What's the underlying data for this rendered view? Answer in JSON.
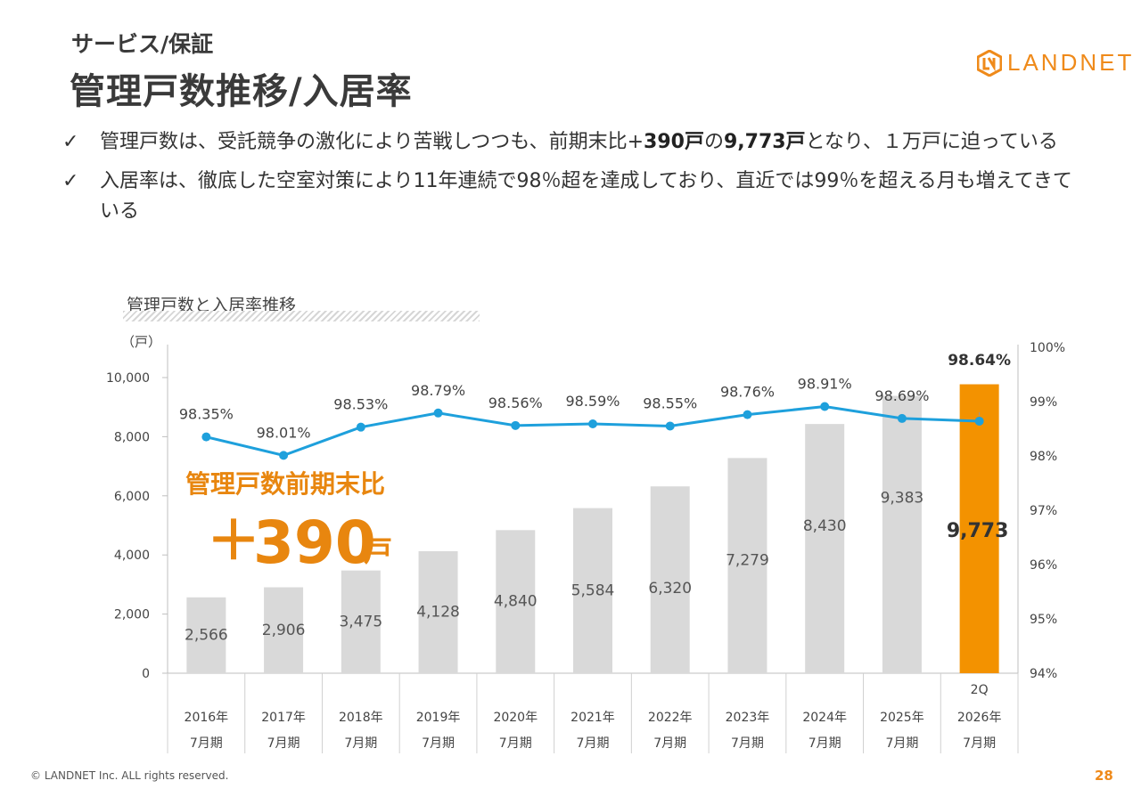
{
  "header": {
    "subtitle": "サービス/保証",
    "title": "管理戸数推移/入居率",
    "logo_text": "LANDNET"
  },
  "bullets": [
    {
      "check": "✓",
      "parts": [
        {
          "text": "管理戸数は、受託競争の激化により苦戦しつつも、前期末比+",
          "bold": false
        },
        {
          "text": "390戸",
          "bold": true
        },
        {
          "text": "の",
          "bold": false
        },
        {
          "text": "9,773戸",
          "bold": true
        },
        {
          "text": "となり、１万戸に迫っている",
          "bold": false
        }
      ]
    },
    {
      "check": "✓",
      "parts": [
        {
          "text": "入居率は、徹底した空室対策により11年連続で98％超を達成しており、直近では99％を超える月も増えてきている",
          "bold": false
        }
      ]
    }
  ],
  "chart_label": "管理戸数と入居率推移",
  "footer": "© LANDNET Inc. ALL rights reserved.",
  "page_number": "28",
  "colors": {
    "bar": "#d9d9d9",
    "highlight_bar": "#f39200",
    "line": "#1ea0dc",
    "accent": "#ef8a1a",
    "label_accent": "#e8860f"
  },
  "chart_data": {
    "type": "bar",
    "title": "管理戸数と入居率推移",
    "categories": [
      [
        "",
        "2016年",
        "7月期"
      ],
      [
        "",
        "2017年",
        "7月期"
      ],
      [
        "",
        "2018年",
        "7月期"
      ],
      [
        "",
        "2019年",
        "7月期"
      ],
      [
        "",
        "2020年",
        "7月期"
      ],
      [
        "",
        "2021年",
        "7月期"
      ],
      [
        "",
        "2022年",
        "7月期"
      ],
      [
        "",
        "2023年",
        "7月期"
      ],
      [
        "",
        "2024年",
        "7月期"
      ],
      [
        "",
        "2025年",
        "7月期"
      ],
      [
        "2Q",
        "2026年",
        "7月期"
      ]
    ],
    "units": [
      2566,
      2906,
      3475,
      4128,
      4840,
      5584,
      6320,
      7279,
      8430,
      9383,
      9773
    ],
    "unit_labels": [
      "2,566",
      "2,906",
      "3,475",
      "4,128",
      "4,840",
      "5,584",
      "6,320",
      "7,279",
      "8,430",
      "9,383",
      "9,773"
    ],
    "occupancy": [
      98.35,
      98.01,
      98.53,
      98.79,
      98.56,
      98.59,
      98.55,
      98.76,
      98.91,
      98.69,
      98.64
    ],
    "occupancy_labels": [
      "98.35%",
      "98.01%",
      "98.53%",
      "98.79%",
      "98.56%",
      "98.59%",
      "98.55%",
      "98.76%",
      "98.91%",
      "98.69%",
      "98.64%"
    ],
    "highlight_index": 10,
    "y_left": {
      "unit": "（戸）",
      "min": 0,
      "max": 11000,
      "ticks": [
        0,
        2000,
        4000,
        6000,
        8000,
        10000
      ],
      "tick_labels": [
        "0",
        "2,000",
        "4,000",
        "6,000",
        "8,000",
        "10,000"
      ]
    },
    "y_right": {
      "min": 94,
      "max": 100,
      "ticks": [
        94,
        95,
        96,
        97,
        98,
        99,
        100
      ],
      "tick_labels": [
        "94%",
        "95%",
        "96%",
        "97%",
        "98%",
        "99%",
        "100%"
      ]
    },
    "annotation": {
      "line1": "管理戸数前期末比",
      "line2_prefix": "＋",
      "line2_value": "390",
      "line2_unit": "戸"
    }
  }
}
